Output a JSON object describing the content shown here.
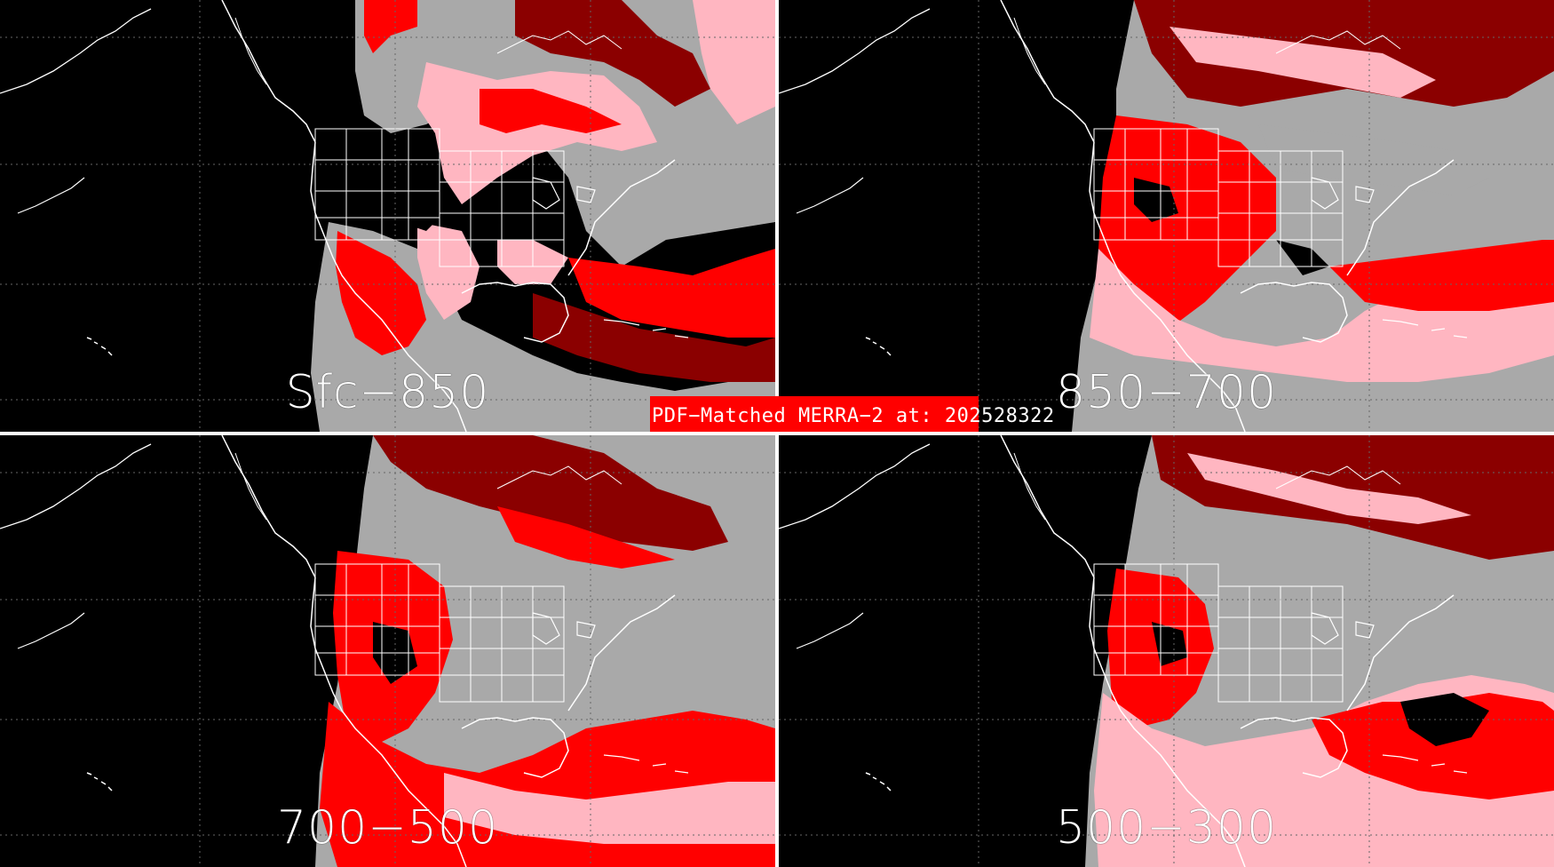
{
  "title": "PDF−Matched MERRA−2 at: 202528322",
  "panels": [
    {
      "id": "tl",
      "label": "Sfc−850"
    },
    {
      "id": "tr",
      "label": "850−700"
    },
    {
      "id": "bl",
      "label": "700−500"
    },
    {
      "id": "br",
      "label": "500−300"
    }
  ],
  "colors": {
    "background": "#000000",
    "gray": "#a9a9a9",
    "dark_gray": "#7f7f7f",
    "pink": "#ffb6c1",
    "red": "#ff0000",
    "dark_red": "#8b0000",
    "coast": "#ffffff",
    "banner": "#ff0000"
  }
}
